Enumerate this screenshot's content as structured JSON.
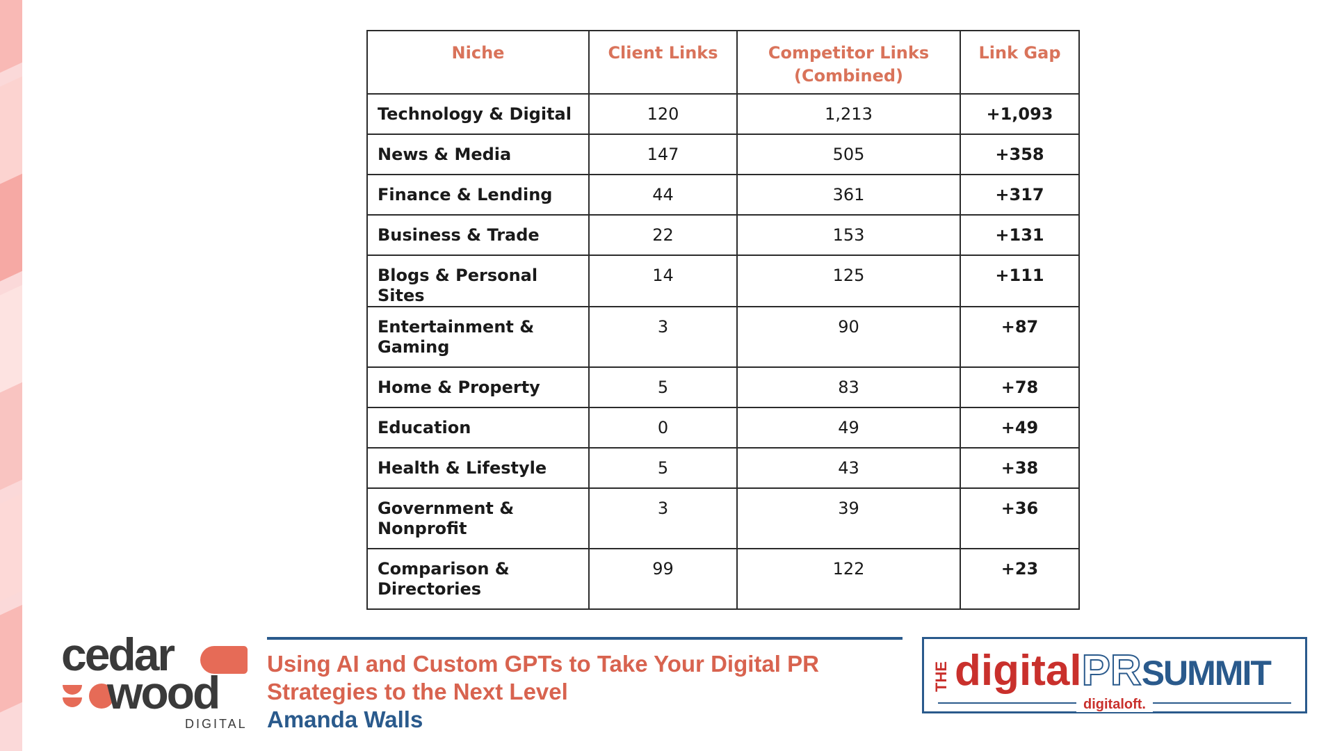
{
  "table": {
    "headers": [
      "Niche",
      "Client Links",
      "Competitor Links (Combined)",
      "Link Gap"
    ],
    "header_lines": {
      "competitor_1": "Competitor Links",
      "competitor_2": "(Combined)"
    },
    "rows": [
      {
        "niche": "Technology & Digital",
        "client": "120",
        "competitor": "1,213",
        "gap": "+1,093"
      },
      {
        "niche": "News & Media",
        "client": "147",
        "competitor": "505",
        "gap": "+358"
      },
      {
        "niche": "Finance & Lending",
        "client": "44",
        "competitor": "361",
        "gap": "+317"
      },
      {
        "niche": "Business & Trade",
        "client": "22",
        "competitor": "153",
        "gap": "+131"
      },
      {
        "niche": "Blogs & Personal Sites",
        "client": "14",
        "competitor": "125",
        "gap": "+111"
      },
      {
        "niche": "Entertainment & Gaming",
        "client": "3",
        "competitor": "90",
        "gap": "+87"
      },
      {
        "niche": "Home & Property",
        "client": "5",
        "competitor": "83",
        "gap": "+78"
      },
      {
        "niche": "Education",
        "client": "0",
        "competitor": "49",
        "gap": "+49"
      },
      {
        "niche": "Health & Lifestyle",
        "client": "5",
        "competitor": "43",
        "gap": "+38"
      },
      {
        "niche": "Government & Nonprofit",
        "client": "3",
        "competitor": "39",
        "gap": "+36"
      },
      {
        "niche": "Comparison & Directories",
        "client": "99",
        "competitor": "122",
        "gap": "+23"
      }
    ]
  },
  "footer": {
    "cedar_logo": {
      "line1": "cedar",
      "line2": "wood",
      "sub": "DIGITAL"
    },
    "talk_title_1": "Using AI and Custom GPTs to Take Your Digital PR",
    "talk_title_2": "Strategies to the Next Level",
    "speaker": "Amanda Walls",
    "summit_logo": {
      "the": "THE",
      "digital": "digital",
      "pr": "PR",
      "summit": "SUMMIT",
      "sub": "digitaloft."
    }
  },
  "colors": {
    "header_text": "#d9735a",
    "accent_red": "#d8634f",
    "accent_blue": "#2a5a8c",
    "deco_pink": "#fbd9d9"
  }
}
